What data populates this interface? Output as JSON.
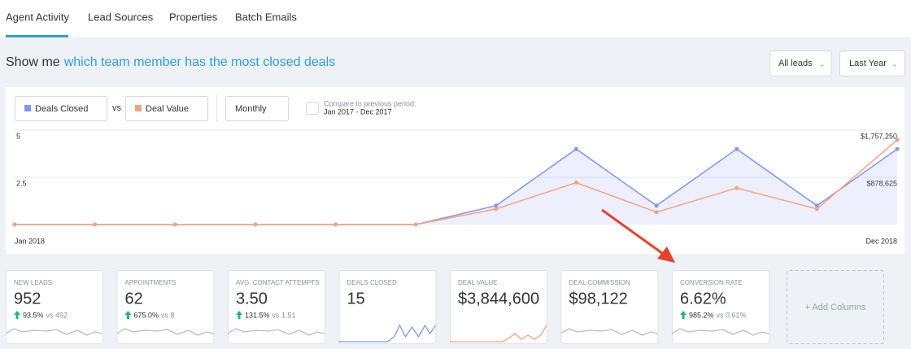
{
  "tabs": [
    "Agent Activity",
    "Lead Sources",
    "Properties",
    "Batch Emails"
  ],
  "header": {
    "prefix": "Show me",
    "question": "which team member has the most closed deals"
  },
  "filters": [
    "All leads",
    "Last Year"
  ],
  "controls": {
    "vs": "vs",
    "period": "Monthly",
    "compare_label": "Compare to previous period:",
    "compare_range": "Jan 2017 - Dec 2017"
  },
  "chart_data": {
    "type": "line",
    "categories": [
      "Jan 2018",
      null,
      null,
      null,
      null,
      null,
      null,
      null,
      null,
      null,
      null,
      "Dec 2018"
    ],
    "series": [
      {
        "name": "Deals Closed",
        "color": "#8396f3",
        "values": [
          0,
          0,
          0,
          0,
          0,
          0,
          1,
          4,
          1,
          4,
          1,
          4
        ]
      },
      {
        "name": "Deal Value",
        "color": "#f7a27f",
        "axis": "y2",
        "values": [
          0,
          0,
          0,
          0,
          0,
          0,
          290000,
          780000,
          230000,
          680000,
          290000,
          1575000
        ]
      }
    ],
    "ylim": [
      0,
      5
    ],
    "yticks": [
      2.5,
      5
    ],
    "y2lim": [
      0,
      1757250
    ],
    "y2ticks": [
      {
        "value": 878625,
        "label": "$878,625"
      },
      {
        "value": 1757250,
        "label": "$1,757,250"
      }
    ],
    "grid": true
  },
  "cards": [
    {
      "label": "NEW LEADS",
      "value": "952",
      "change": "93.5%",
      "vs": "vs 492"
    },
    {
      "label": "APPOINTMENTS",
      "value": "62",
      "change": "675.0%",
      "vs": "vs 8"
    },
    {
      "label": "AVG. CONTACT ATTEMPTS",
      "value": "3.50",
      "change": "131.5%",
      "vs": "vs 1.51"
    },
    {
      "label": "DEALS CLOSED",
      "value": "15"
    },
    {
      "label": "DEAL VALUE",
      "value": "$3,844,600"
    },
    {
      "label": "DEAL COMMISSION",
      "value": "$98,122"
    },
    {
      "label": "CONVERSION RATE",
      "value": "6.62%",
      "change": "985.2%",
      "vs": "vs 0.61%"
    }
  ],
  "add_columns": "+ Add Columns"
}
